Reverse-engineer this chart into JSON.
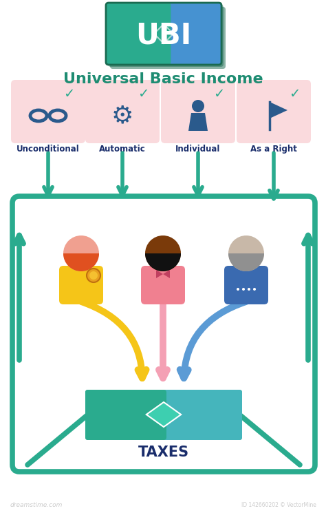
{
  "title": "Universal Basic Income",
  "ubi_text": "UBI",
  "taxes_text": "TAXES",
  "labels": [
    "Unconditional",
    "Automatic",
    "Individual",
    "As a Right"
  ],
  "teal": "#2aab8e",
  "pink_box": "#fadadd",
  "title_color": "#1e8c72",
  "taxes_label_color": "#1a2d6b",
  "label_color": "#1a2d6b",
  "yellow_arrow": "#f5c518",
  "pink_arrow": "#f4a0b4",
  "blue_arrow": "#5b9bd5",
  "bg_color": "#ffffff",
  "ubi_green": "#2aab8e",
  "ubi_blue": "#4a90d9",
  "person1_skin": "#f0a090",
  "person1_hair": "#e05020",
  "person1_body": "#f5c518",
  "person2_skin": "#7a3a0a",
  "person2_hair": "#111111",
  "person2_body": "#f08090",
  "person3_skin": "#c8b8a8",
  "person3_hair": "#909090",
  "person3_body": "#3a6ab0",
  "check_color": "#2aab8e",
  "icon_color": "#2a5a8c"
}
